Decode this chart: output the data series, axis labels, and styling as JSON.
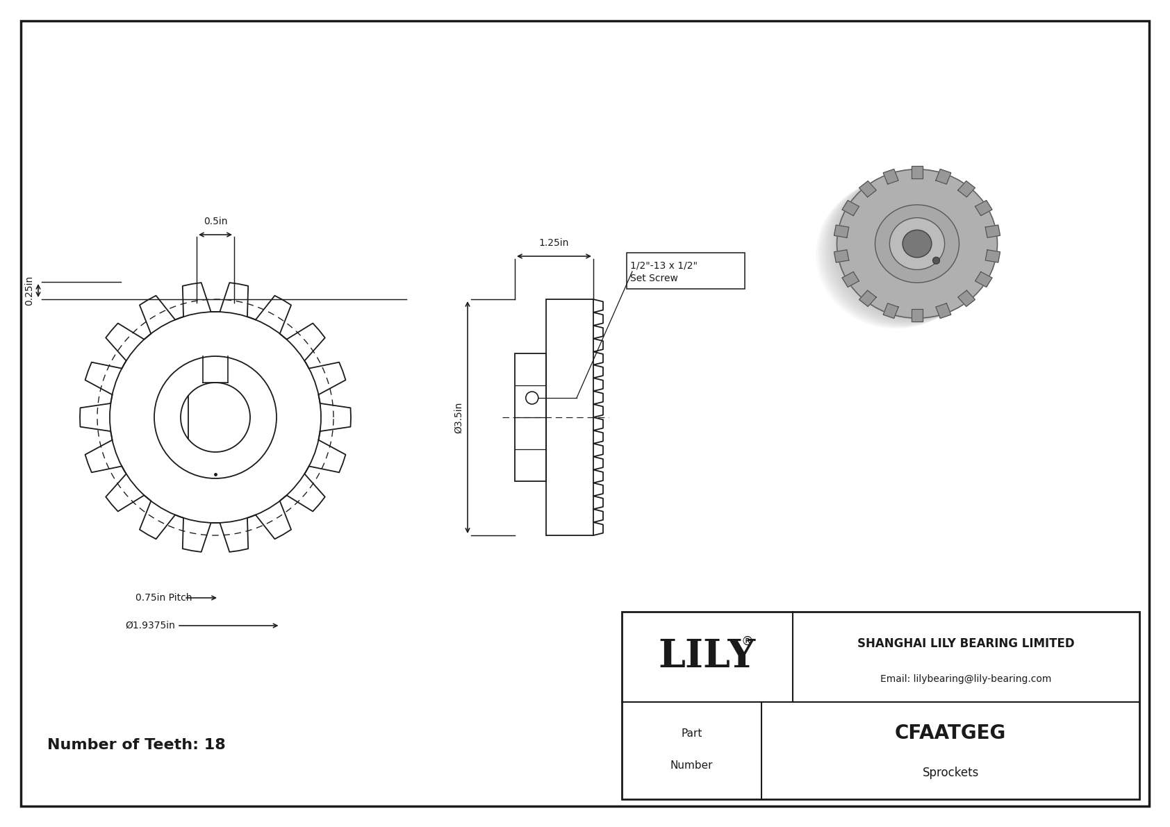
{
  "bg_color": "#ffffff",
  "line_color": "#1a1a1a",
  "part_number": "CFAATGEG",
  "part_category": "Sprockets",
  "company": "SHANGHAI LILY BEARING LIMITED",
  "email": "Email: lilybearing@lily-bearing.com",
  "lily_brand": "LILY",
  "num_teeth_label": "Number of Teeth: 18",
  "dim_05in": "0.5in",
  "dim_025in": "0.25in",
  "dim_125in": "1.25in",
  "dim_35in": "Ø3.5in",
  "dim_075in_pitch": "0.75in Pitch",
  "dim_19375in": "Ø1.9375in",
  "set_screw": "1/2\"-13 x 1/2\"",
  "set_screw2": "Set Screw"
}
